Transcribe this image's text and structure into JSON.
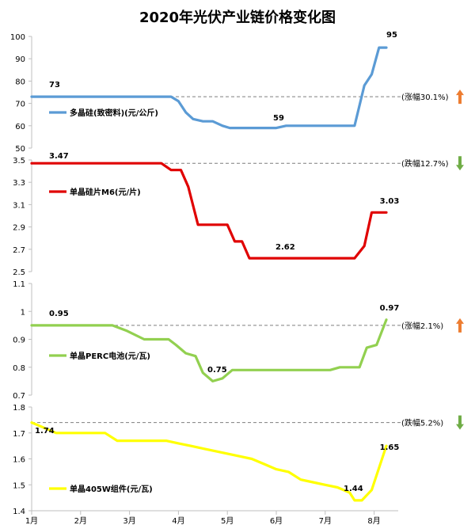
{
  "title": "2020年光伏产业链价格变化图",
  "chart_data": [
    {
      "type": "line",
      "name": "多晶硅(致密料)(元/公斤)",
      "color": "#5b9bd5",
      "ylim": [
        50,
        100
      ],
      "yticks": [
        "50",
        "60",
        "70",
        "80",
        "90",
        "100"
      ],
      "x": [
        0,
        0.5,
        1.0,
        1.5,
        2.0,
        2.5,
        2.85,
        3.0,
        3.15,
        3.3,
        3.5,
        3.7,
        3.9,
        4.05,
        4.2,
        4.4,
        4.6,
        4.8,
        5.0,
        5.2,
        5.4,
        5.6,
        5.8,
        6.0,
        6.2,
        6.4,
        6.6,
        6.8,
        6.95,
        7.1,
        7.25
      ],
      "values": [
        73,
        73,
        73,
        73,
        73,
        73,
        73,
        71,
        66,
        63,
        62,
        62,
        60,
        59,
        59,
        59,
        59,
        59,
        59,
        60,
        60,
        60,
        60,
        60,
        60,
        60,
        60,
        78,
        83,
        95,
        95
      ],
      "start_label": "73",
      "min_label": "59",
      "end_label": "95",
      "reference": 73,
      "change_text": "(涨幅30.1%)",
      "direction": "up"
    },
    {
      "type": "line",
      "name": "单晶硅片M6(元/片)",
      "color": "#e00000",
      "ylim": [
        2.5,
        3.5
      ],
      "yticks": [
        "2.5",
        "2.7",
        "2.9",
        "3.1",
        "3.3",
        "3.5"
      ],
      "x": [
        0,
        0.5,
        1.0,
        1.5,
        2.0,
        2.5,
        2.65,
        2.85,
        3.05,
        3.2,
        3.4,
        3.6,
        3.8,
        4.0,
        4.15,
        4.3,
        4.45,
        4.6,
        4.8,
        5.0,
        5.2,
        5.4,
        5.6,
        5.8,
        6.0,
        6.2,
        6.4,
        6.6,
        6.8,
        6.95,
        7.1,
        7.25
      ],
      "values": [
        3.47,
        3.47,
        3.47,
        3.47,
        3.47,
        3.47,
        3.47,
        3.41,
        3.41,
        3.26,
        2.92,
        2.92,
        2.92,
        2.92,
        2.77,
        2.77,
        2.62,
        2.62,
        2.62,
        2.62,
        2.62,
        2.62,
        2.62,
        2.62,
        2.62,
        2.62,
        2.62,
        2.62,
        2.73,
        3.03,
        3.03,
        3.03
      ],
      "start_label": "3.47",
      "min_label": "2.62",
      "end_label": "3.03",
      "reference": 3.47,
      "change_text": "(跌幅12.7%)",
      "direction": "down"
    },
    {
      "type": "line",
      "name": "单晶PERC电池(元/瓦)",
      "color": "#92d050",
      "ylim": [
        0.7,
        1.1
      ],
      "yticks": [
        "0.7",
        "0.8",
        "0.9",
        "1",
        "1.1"
      ],
      "x": [
        0,
        0.5,
        1.0,
        1.5,
        1.65,
        1.95,
        2.3,
        2.6,
        2.8,
        2.95,
        3.15,
        3.35,
        3.5,
        3.7,
        3.9,
        4.1,
        4.3,
        4.5,
        4.7,
        4.9,
        5.1,
        5.3,
        5.5,
        5.7,
        5.9,
        6.1,
        6.3,
        6.5,
        6.7,
        6.85,
        7.05,
        7.25
      ],
      "values": [
        0.95,
        0.95,
        0.95,
        0.95,
        0.95,
        0.93,
        0.9,
        0.9,
        0.9,
        0.88,
        0.85,
        0.84,
        0.78,
        0.75,
        0.76,
        0.79,
        0.79,
        0.79,
        0.79,
        0.79,
        0.79,
        0.79,
        0.79,
        0.79,
        0.79,
        0.79,
        0.8,
        0.8,
        0.8,
        0.87,
        0.88,
        0.97
      ],
      "start_label": "0.95",
      "min_label": "0.75",
      "end_label": "0.97",
      "reference": 0.95,
      "change_text": "(涨幅2.1%)",
      "direction": "up"
    },
    {
      "type": "line",
      "name": "单晶405W组件(元/瓦)",
      "color": "#ffff00",
      "ylim": [
        1.4,
        1.8
      ],
      "yticks": [
        "1.4",
        "1.5",
        "1.6",
        "1.7",
        "1.8"
      ],
      "x": [
        0,
        0.25,
        0.5,
        0.75,
        1.0,
        1.25,
        1.5,
        1.75,
        2.0,
        2.25,
        2.5,
        2.75,
        3.0,
        3.25,
        3.5,
        3.75,
        4.0,
        4.25,
        4.5,
        4.75,
        5.0,
        5.25,
        5.5,
        5.75,
        6.0,
        6.25,
        6.5,
        6.6,
        6.75,
        6.95,
        7.25
      ],
      "values": [
        1.74,
        1.72,
        1.7,
        1.7,
        1.7,
        1.7,
        1.7,
        1.67,
        1.67,
        1.67,
        1.67,
        1.67,
        1.66,
        1.65,
        1.64,
        1.63,
        1.62,
        1.61,
        1.6,
        1.58,
        1.56,
        1.55,
        1.52,
        1.51,
        1.5,
        1.49,
        1.47,
        1.44,
        1.44,
        1.48,
        1.65
      ],
      "start_label": "1.74",
      "min_label": "1.44",
      "end_label": "1.65",
      "reference": 1.74,
      "change_text": "(跌幅5.2%)",
      "direction": "down"
    }
  ],
  "x_tick_labels": [
    "1月",
    "2月",
    "3月",
    "4月",
    "5月",
    "6月",
    "7月",
    "8月"
  ],
  "colors": {
    "up_arrow": "#ed7d31",
    "down_arrow": "#70ad47",
    "reference_line": "#7f7f7f",
    "axis": "#bfbfbf"
  }
}
